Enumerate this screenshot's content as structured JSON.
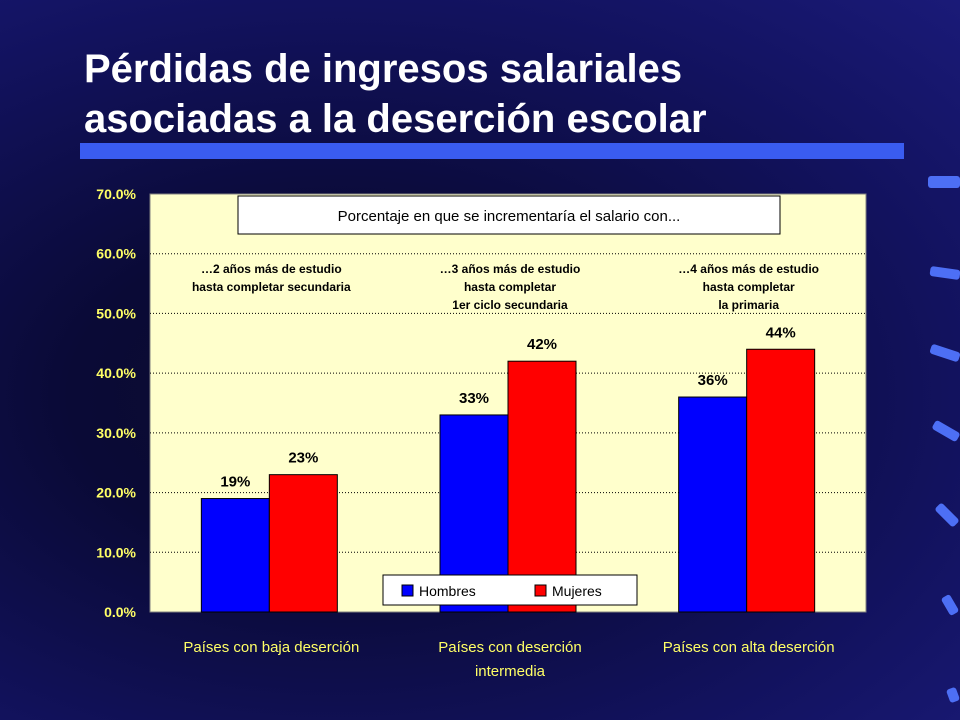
{
  "slide": {
    "title_line1": "Pérdidas de ingresos salariales",
    "title_line2": "asociadas a la deserción escolar"
  },
  "colors": {
    "plot_bg": "#ffffcc",
    "hombres": "#0000ff",
    "mujeres": "#ff0000",
    "tick_text": "#ffff66",
    "accent_bar": "#3a5cf0"
  },
  "chart_data": {
    "type": "bar",
    "title": "Porcentaje en que se incrementaría el salario con...",
    "categories": [
      [
        "Países con baja deserción"
      ],
      [
        "Países con deserción",
        "intermedia"
      ],
      [
        "Países con alta deserción"
      ]
    ],
    "group_notes": [
      [
        "…2 años más de estudio",
        "hasta completar secundaria"
      ],
      [
        "…3 años más de estudio",
        "hasta completar",
        "1er ciclo secundaria"
      ],
      [
        "…4 años más de estudio",
        "hasta completar",
        "la primaria"
      ]
    ],
    "series": [
      {
        "name": "Hombres",
        "values": [
          19,
          33,
          36
        ],
        "labels": [
          "19%",
          "33%",
          "36%"
        ]
      },
      {
        "name": "Mujeres",
        "values": [
          23,
          42,
          44
        ],
        "labels": [
          "23%",
          "42%",
          "44%"
        ]
      }
    ],
    "yticks": [
      "0.0%",
      "10.0%",
      "20.0%",
      "30.0%",
      "40.0%",
      "50.0%",
      "60.0%",
      "70.0%"
    ],
    "ylim": [
      0,
      70
    ],
    "grid": true,
    "legend_position": "bottom-center"
  }
}
